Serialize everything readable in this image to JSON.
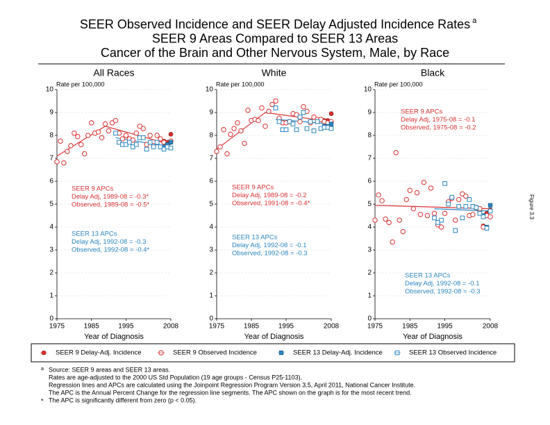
{
  "title": {
    "lines": [
      "SEER Observed Incidence and SEER Delay Adjusted Incidence Rates",
      "SEER 9 Areas Compared to SEER 13 Areas",
      "Cancer of the Brain and Other Nervous System, Male, by Race"
    ],
    "note": "a"
  },
  "figure_label": "Figure 3.3",
  "footnotes": [
    {
      "mark": "a",
      "text": "Source: SEER 9 areas and SEER 13 areas."
    },
    {
      "text": "Rates are age-adjusted to the 2000 US Std Population (19 age groups - Census P25-1103)."
    },
    {
      "text": "Regression lines and APCs are calculated using the Joinpoint Regression Program Version 3.5, April 2011, National Cancer Institute."
    },
    {
      "text": "The APC is the Annual Percent Change for the regression line segments. The APC shown on the graph is for the most recent trend."
    },
    {
      "mark": "*",
      "text": "The APC is significantly different from zero (p < 0.05)."
    }
  ],
  "chart_data": [
    {
      "type": "scatter",
      "title": "All Races",
      "y_label": "Rate per 100,000",
      "x_label": "Year of Diagnosis",
      "xlim": [
        1975,
        2008
      ],
      "xticks": [
        1975,
        1985,
        1995,
        2008
      ],
      "ylim": [
        0,
        10
      ],
      "yticks": [
        0,
        1,
        2,
        3,
        4,
        5,
        6,
        7,
        8,
        9,
        10
      ],
      "grid": true,
      "series": [
        {
          "name": "SEER 9 Delay-Adj. Incidence",
          "color": "#d93030",
          "marker": "filled-circle",
          "x": [
            1975,
            1976,
            1977,
            1978,
            1979,
            1980,
            1981,
            1982,
            1983,
            1984,
            1985,
            1986,
            1987,
            1988,
            1989,
            1990,
            1991,
            1992,
            1993,
            1994,
            1995,
            1996,
            1997,
            1998,
            1999,
            2000,
            2001,
            2002,
            2003,
            2004,
            2005,
            2006,
            2007,
            2008
          ],
          "values": [
            6.85,
            7.75,
            6.8,
            7.3,
            7.55,
            8.1,
            7.95,
            7.6,
            7.2,
            8.0,
            8.55,
            8.1,
            8.15,
            7.9,
            8.5,
            8.2,
            8.55,
            8.65,
            8.1,
            7.85,
            8.0,
            7.85,
            7.8,
            8.1,
            8.4,
            8.3,
            7.6,
            8.0,
            7.55,
            8.0,
            7.85,
            7.75,
            7.7,
            8.05
          ]
        },
        {
          "name": "SEER 9 Observed Incidence",
          "color": "#d93030",
          "marker": "open-circle",
          "x": [
            1975,
            1976,
            1977,
            1978,
            1979,
            1980,
            1981,
            1982,
            1983,
            1984,
            1985,
            1986,
            1987,
            1988,
            1989,
            1990,
            1991,
            1992,
            1993,
            1994,
            1995,
            1996,
            1997,
            1998,
            1999,
            2000,
            2001,
            2002,
            2003,
            2004,
            2005,
            2006,
            2007,
            2008
          ],
          "values": [
            6.85,
            7.75,
            6.8,
            7.3,
            7.55,
            8.1,
            7.95,
            7.6,
            7.2,
            8.0,
            8.55,
            8.1,
            8.15,
            7.9,
            8.5,
            8.2,
            8.55,
            8.65,
            8.1,
            7.85,
            8.0,
            7.85,
            7.8,
            8.1,
            8.4,
            8.3,
            7.6,
            8.0,
            7.55,
            8.0,
            7.85,
            7.7,
            7.6,
            7.75
          ]
        },
        {
          "name": "SEER 13 Delay-Adj. Incidence",
          "color": "#2a86c0",
          "marker": "filled-square",
          "x": [
            1992,
            1993,
            1994,
            1995,
            1996,
            1997,
            1998,
            1999,
            2000,
            2001,
            2002,
            2003,
            2004,
            2005,
            2006,
            2007,
            2008
          ],
          "values": [
            8.1,
            7.7,
            7.6,
            7.6,
            7.7,
            7.5,
            7.6,
            7.9,
            7.9,
            7.4,
            7.7,
            7.5,
            7.7,
            7.5,
            7.5,
            7.6,
            7.7
          ]
        },
        {
          "name": "SEER 13 Observed Incidence",
          "color": "#2a86c0",
          "marker": "open-square",
          "x": [
            1992,
            1993,
            1994,
            1995,
            1996,
            1997,
            1998,
            1999,
            2000,
            2001,
            2002,
            2003,
            2004,
            2005,
            2006,
            2007,
            2008
          ],
          "values": [
            8.1,
            7.7,
            7.6,
            7.6,
            7.7,
            7.5,
            7.6,
            7.9,
            7.9,
            7.4,
            7.7,
            7.5,
            7.7,
            7.5,
            7.4,
            7.5,
            7.45
          ]
        }
      ],
      "trends": [
        {
          "color": "#d93030",
          "x": [
            1975,
            1989,
            2008
          ],
          "values": [
            7.1,
            8.4,
            7.6
          ]
        },
        {
          "color": "#2a86c0",
          "x": [
            1992,
            2008
          ],
          "values": [
            7.9,
            7.5
          ]
        }
      ],
      "annotations": [
        {
          "color": "#d93030",
          "lines": [
            "SEER 9 APCs",
            "Delay Adj, 1989-08 = -0.3*",
            "Observed, 1989-08 = -0.5*"
          ]
        },
        {
          "color": "#2a86c0",
          "lines": [
            "SEER 13 APCs",
            "Delay Adj, 1992-08 = -0.3",
            "Observed, 1992-08 = -0.4*"
          ]
        }
      ]
    },
    {
      "type": "scatter",
      "title": "White",
      "y_label": "Rate per 100,000",
      "x_label": "Year of Diagnosis",
      "xlim": [
        1975,
        2008
      ],
      "xticks": [
        1975,
        1985,
        1995,
        2008
      ],
      "ylim": [
        0,
        10
      ],
      "yticks": [
        0,
        1,
        2,
        3,
        4,
        5,
        6,
        7,
        8,
        9,
        10
      ],
      "grid": true,
      "series": [
        {
          "name": "SEER 9 Delay-Adj. Incidence",
          "color": "#d93030",
          "marker": "filled-circle",
          "x": [
            1975,
            1976,
            1977,
            1978,
            1979,
            1980,
            1981,
            1982,
            1983,
            1984,
            1985,
            1986,
            1987,
            1988,
            1989,
            1990,
            1991,
            1992,
            1993,
            1994,
            1995,
            1996,
            1997,
            1998,
            1999,
            2000,
            2001,
            2002,
            2003,
            2004,
            2005,
            2006,
            2007,
            2008
          ],
          "values": [
            7.3,
            7.5,
            8.25,
            7.2,
            8.05,
            8.3,
            8.55,
            8.2,
            7.65,
            9.1,
            8.65,
            8.7,
            8.65,
            9.2,
            8.4,
            9.05,
            9.35,
            9.5,
            8.75,
            8.55,
            8.55,
            8.6,
            8.95,
            8.9,
            8.6,
            9.25,
            9.05,
            8.55,
            8.8,
            8.7,
            8.7,
            8.65,
            8.65,
            8.95
          ]
        },
        {
          "name": "SEER 9 Observed Incidence",
          "color": "#d93030",
          "marker": "open-circle",
          "x": [
            1975,
            1976,
            1977,
            1978,
            1979,
            1980,
            1981,
            1982,
            1983,
            1984,
            1985,
            1986,
            1987,
            1988,
            1989,
            1990,
            1991,
            1992,
            1993,
            1994,
            1995,
            1996,
            1997,
            1998,
            1999,
            2000,
            2001,
            2002,
            2003,
            2004,
            2005,
            2006,
            2007,
            2008
          ],
          "values": [
            7.3,
            7.5,
            8.25,
            7.2,
            8.05,
            8.3,
            8.55,
            8.2,
            7.65,
            9.1,
            8.65,
            8.7,
            8.65,
            9.2,
            8.4,
            9.05,
            9.35,
            9.5,
            8.75,
            8.55,
            8.55,
            8.6,
            8.95,
            8.9,
            8.6,
            9.25,
            9.05,
            8.55,
            8.8,
            8.7,
            8.7,
            8.6,
            8.55,
            8.6
          ]
        },
        {
          "name": "SEER 13 Delay-Adj. Incidence",
          "color": "#2a86c0",
          "marker": "filled-square",
          "x": [
            1992,
            1993,
            1994,
            1995,
            1996,
            1997,
            1998,
            1999,
            2000,
            2001,
            2002,
            2003,
            2004,
            2005,
            2006,
            2007,
            2008
          ],
          "values": [
            9.2,
            8.6,
            8.25,
            8.25,
            8.6,
            8.5,
            8.25,
            8.8,
            9.0,
            8.3,
            8.6,
            8.2,
            8.6,
            8.3,
            8.4,
            8.4,
            8.5
          ]
        },
        {
          "name": "SEER 13 Observed Incidence",
          "color": "#2a86c0",
          "marker": "open-square",
          "x": [
            1992,
            1993,
            1994,
            1995,
            1996,
            1997,
            1998,
            1999,
            2000,
            2001,
            2002,
            2003,
            2004,
            2005,
            2006,
            2007,
            2008
          ],
          "values": [
            9.2,
            8.6,
            8.25,
            8.25,
            8.6,
            8.5,
            8.25,
            8.8,
            9.0,
            8.3,
            8.6,
            8.2,
            8.6,
            8.3,
            8.35,
            8.35,
            8.3
          ]
        }
      ],
      "trends": [
        {
          "color": "#d93030",
          "x": [
            1975,
            1989,
            2008
          ],
          "values": [
            7.4,
            9.0,
            8.6
          ]
        },
        {
          "color": "#2a86c0",
          "x": [
            1992,
            2008
          ],
          "values": [
            8.7,
            8.5
          ]
        }
      ],
      "annotations": [
        {
          "color": "#d93030",
          "lines": [
            "SEER 9 APCs",
            "Delay Adj, 1989-08 = -0.2",
            "Observed, 1991-08 = -0.4*"
          ]
        },
        {
          "color": "#2a86c0",
          "lines": [
            "SEER 13 APCs",
            "Delay Adj, 1992-08 = -0.1",
            "Observed, 1992-08 = -0.3"
          ]
        }
      ]
    },
    {
      "type": "scatter",
      "title": "Black",
      "y_label": "Rate per 100,000",
      "x_label": "Year of Diagnosis",
      "xlim": [
        1975,
        2008
      ],
      "xticks": [
        1975,
        1985,
        1995,
        2008
      ],
      "ylim": [
        0,
        10
      ],
      "yticks": [
        0,
        1,
        2,
        3,
        4,
        5,
        6,
        7,
        8,
        9,
        10
      ],
      "grid": true,
      "series": [
        {
          "name": "SEER 9 Delay-Adj. Incidence",
          "color": "#d93030",
          "marker": "filled-circle",
          "x": [
            1975,
            1976,
            1977,
            1978,
            1979,
            1980,
            1981,
            1982,
            1983,
            1984,
            1985,
            1986,
            1987,
            1988,
            1989,
            1990,
            1991,
            1992,
            1993,
            1994,
            1995,
            1996,
            1997,
            1998,
            1999,
            2000,
            2001,
            2002,
            2003,
            2004,
            2005,
            2006,
            2007,
            2008
          ],
          "values": [
            4.3,
            5.4,
            5.15,
            4.35,
            4.2,
            3.35,
            7.25,
            4.3,
            3.8,
            5.2,
            5.6,
            4.8,
            5.5,
            4.55,
            5.95,
            4.5,
            5.7,
            4.6,
            4.1,
            4.0,
            4.6,
            5.1,
            5.25,
            4.3,
            5.2,
            5.45,
            5.35,
            4.5,
            4.55,
            4.85,
            4.8,
            4.05,
            4.6,
            4.75
          ]
        },
        {
          "name": "SEER 9 Observed Incidence",
          "color": "#d93030",
          "marker": "open-circle",
          "x": [
            1975,
            1976,
            1977,
            1978,
            1979,
            1980,
            1981,
            1982,
            1983,
            1984,
            1985,
            1986,
            1987,
            1988,
            1989,
            1990,
            1991,
            1992,
            1993,
            1994,
            1995,
            1996,
            1997,
            1998,
            1999,
            2000,
            2001,
            2002,
            2003,
            2004,
            2005,
            2006,
            2007,
            2008
          ],
          "values": [
            4.3,
            5.4,
            5.15,
            4.35,
            4.2,
            3.35,
            7.25,
            4.3,
            3.8,
            5.2,
            5.6,
            4.8,
            5.5,
            4.55,
            5.95,
            4.5,
            5.7,
            4.6,
            4.1,
            4.0,
            4.6,
            5.1,
            5.25,
            4.3,
            5.2,
            5.45,
            5.35,
            4.5,
            4.55,
            4.85,
            4.8,
            4.0,
            4.5,
            4.45
          ]
        },
        {
          "name": "SEER 13 Delay-Adj. Incidence",
          "color": "#2a86c0",
          "marker": "filled-square",
          "x": [
            1992,
            1993,
            1994,
            1995,
            1996,
            1997,
            1998,
            1999,
            2000,
            2001,
            2002,
            2003,
            2004,
            2005,
            2006,
            2007,
            2008
          ],
          "values": [
            4.4,
            4.2,
            4.3,
            5.9,
            5.0,
            5.3,
            3.85,
            4.9,
            4.4,
            4.9,
            5.2,
            4.9,
            4.85,
            4.6,
            4.5,
            4.0,
            4.95
          ]
        },
        {
          "name": "SEER 13 Observed Incidence",
          "color": "#2a86c0",
          "marker": "open-square",
          "x": [
            1992,
            1993,
            1994,
            1995,
            1996,
            1997,
            1998,
            1999,
            2000,
            2001,
            2002,
            2003,
            2004,
            2005,
            2006,
            2007,
            2008
          ],
          "values": [
            4.4,
            4.2,
            4.3,
            5.9,
            5.0,
            5.3,
            3.85,
            4.9,
            4.4,
            4.9,
            5.2,
            4.9,
            4.85,
            4.6,
            4.45,
            3.95,
            4.7
          ]
        }
      ],
      "trends": [
        {
          "color": "#d93030",
          "x": [
            1975,
            2008
          ],
          "values": [
            4.95,
            4.8
          ]
        },
        {
          "color": "#2a86c0",
          "x": [
            1992,
            2008
          ],
          "values": [
            4.8,
            4.7
          ]
        }
      ],
      "annotations": [
        {
          "color": "#d93030",
          "lines": [
            "SEER 9 APCs",
            "Delay Adj, 1975-08 = -0.1",
            "Observed, 1975-08 = -0.2"
          ]
        },
        {
          "color": "#2a86c0",
          "lines": [
            "SEER 13 APCs",
            "Delay Adj, 1992-08 = -0.1",
            "Observed, 1992-08 = -0.3"
          ]
        }
      ]
    }
  ]
}
